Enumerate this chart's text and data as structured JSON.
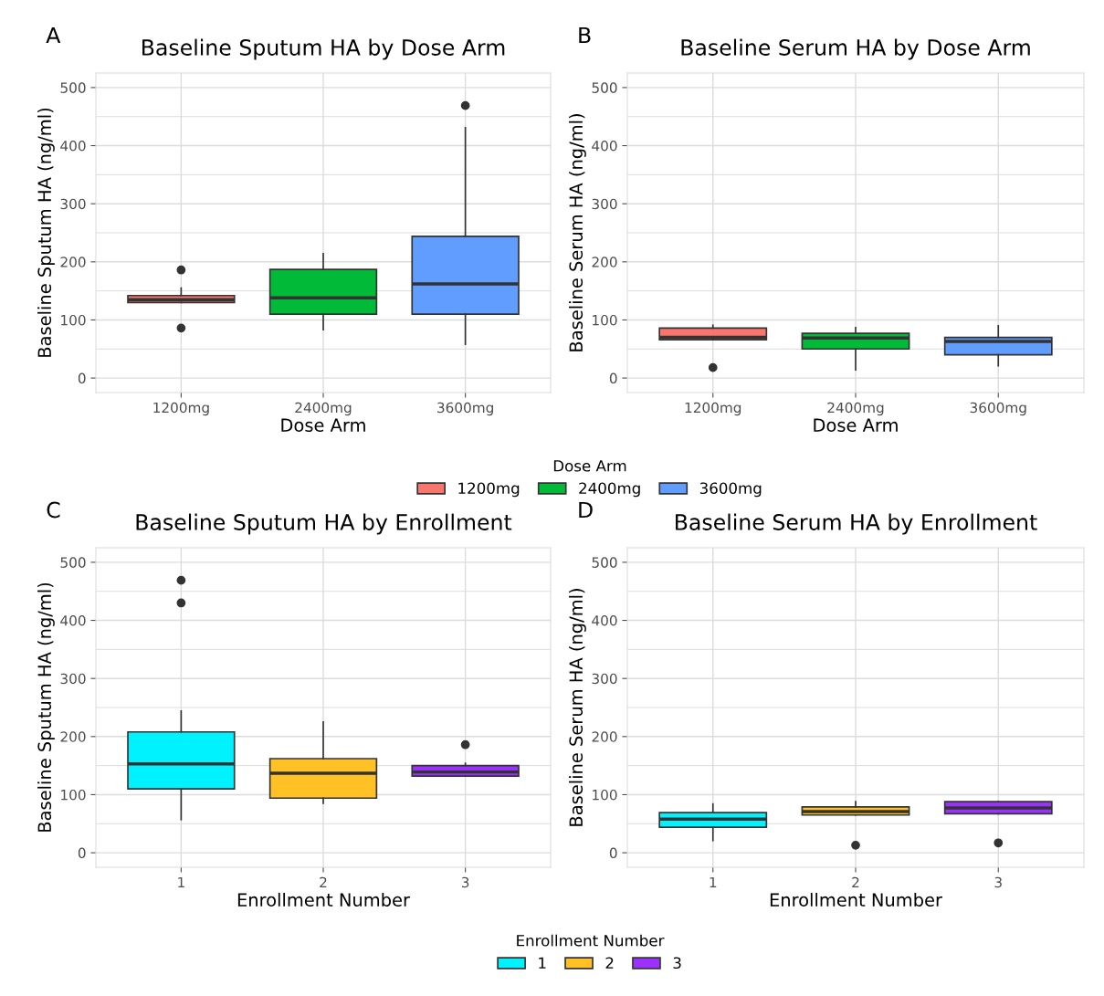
{
  "chart_data": [
    {
      "type": "box",
      "title": "Baseline Sputum HA by Dose Arm",
      "xlabel": "Dose Arm",
      "ylabel": "Baseline Sputum HA (ng/ml)",
      "annotations": [
        "A"
      ],
      "categories": [
        "1200mg",
        "2400mg",
        "3600mg"
      ],
      "legend_title": "Dose Arm",
      "legend": "bottom",
      "grid": true,
      "ylim": [
        -25,
        525
      ],
      "yticks": [
        0,
        100,
        200,
        300,
        400,
        500
      ],
      "series": [
        {
          "name": "1200mg",
          "color": "#f8766d",
          "boxes": [
            {
              "low": 130,
              "q1": 130,
              "median": 135,
              "q3": 142,
              "high": 155,
              "outliers": [
                186,
                86
              ]
            },
            null,
            null
          ]
        },
        {
          "name": "2400mg",
          "color": "#00ba38",
          "boxes": [
            null,
            {
              "low": 83,
              "q1": 110,
              "median": 138,
              "q3": 187,
              "high": 214
            },
            null
          ]
        },
        {
          "name": "3600mg",
          "color": "#619cff",
          "boxes": [
            null,
            null,
            {
              "low": 58,
              "q1": 110,
              "median": 162,
              "q3": 244,
              "high": 431,
              "outliers": [
                469
              ]
            }
          ]
        }
      ]
    },
    {
      "type": "box",
      "title": "Baseline Serum HA by Dose Arm",
      "xlabel": "Dose Arm",
      "ylabel": "Baseline Serum HA (ng/ml)",
      "annotations": [
        "B"
      ],
      "categories": [
        "1200mg",
        "2400mg",
        "3600mg"
      ],
      "grid": true,
      "ylim": [
        -25,
        525
      ],
      "yticks": [
        0,
        100,
        200,
        300,
        400,
        500
      ],
      "series": [
        {
          "color": "#f8766d",
          "boxes": [
            {
              "low": 66,
              "q1": 66,
              "median": 70,
              "q3": 86,
              "high": 91,
              "outliers": [
                18
              ]
            },
            null,
            null
          ]
        },
        {
          "color": "#00ba38",
          "boxes": [
            null,
            {
              "low": 14,
              "q1": 50,
              "median": 69,
              "q3": 77,
              "high": 87
            },
            null
          ]
        },
        {
          "color": "#619cff",
          "boxes": [
            null,
            null,
            {
              "low": 21,
              "q1": 40,
              "median": 63,
              "q3": 70,
              "high": 90
            }
          ]
        }
      ]
    },
    {
      "type": "box",
      "title": "Baseline Sputum HA by Enrollment",
      "xlabel": "Enrollment Number",
      "ylabel": "Baseline Sputum HA (ng/ml)",
      "annotations": [
        "C"
      ],
      "categories": [
        "1",
        "2",
        "3"
      ],
      "legend_title": "Enrollment Number",
      "legend": "bottom",
      "grid": true,
      "ylim": [
        -25,
        525
      ],
      "yticks": [
        0,
        100,
        200,
        300,
        400,
        500
      ],
      "series": [
        {
          "name": "1",
          "color": "#00f2ff",
          "boxes": [
            {
              "low": 57,
              "q1": 110,
              "median": 153,
              "q3": 208,
              "high": 244,
              "outliers": [
                469,
                430
              ]
            },
            null,
            null
          ]
        },
        {
          "name": "2",
          "color": "#ffc125",
          "boxes": [
            null,
            {
              "low": 85,
              "q1": 94,
              "median": 137,
              "q3": 162,
              "high": 225
            },
            null
          ]
        },
        {
          "name": "3",
          "color": "#9b30ff",
          "boxes": [
            null,
            null,
            {
              "low": 132,
              "q1": 132,
              "median": 139,
              "q3": 150,
              "high": 154,
              "outliers": [
                186
              ]
            }
          ]
        }
      ]
    },
    {
      "type": "box",
      "title": "Baseline Serum HA by Enrollment",
      "xlabel": "Enrollment Number",
      "ylabel": "Baseline Serum HA (ng/ml)",
      "annotations": [
        "D"
      ],
      "categories": [
        "1",
        "2",
        "3"
      ],
      "grid": true,
      "ylim": [
        -25,
        525
      ],
      "yticks": [
        0,
        100,
        200,
        300,
        400,
        500
      ],
      "series": [
        {
          "color": "#00f2ff",
          "boxes": [
            {
              "low": 21,
              "q1": 44,
              "median": 58,
              "q3": 69,
              "high": 84
            },
            null,
            null
          ]
        },
        {
          "color": "#ffc125",
          "boxes": [
            null,
            {
              "low": 65,
              "q1": 65,
              "median": 71,
              "q3": 79,
              "high": 88,
              "outliers": [
                13
              ]
            },
            null
          ]
        },
        {
          "color": "#9b30ff",
          "boxes": [
            null,
            null,
            {
              "low": 67,
              "q1": 67,
              "median": 77,
              "q3": 88,
              "high": 88,
              "outliers": [
                17
              ]
            }
          ]
        }
      ]
    }
  ]
}
